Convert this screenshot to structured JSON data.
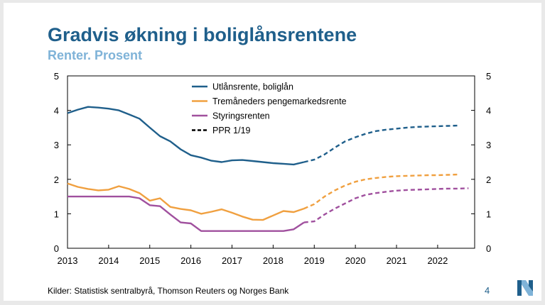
{
  "header": {
    "title": "Gradvis økning i boliglånsrentene",
    "subtitle": "Renter. Prosent"
  },
  "footer": {
    "source": "Kilder: Statistisk sentralbyrå, Thomson Reuters og Norges Bank",
    "page_number": "4"
  },
  "chart_data": {
    "type": "line",
    "title": "Gradvis økning i boliglånsrentene",
    "subtitle": "Renter. Prosent",
    "xlabel": "",
    "ylabel": "",
    "xlim": [
      2013.0,
      2022.9
    ],
    "ylim": [
      0,
      5
    ],
    "x_ticks": [
      2013,
      2014,
      2015,
      2016,
      2017,
      2018,
      2019,
      2020,
      2021,
      2022
    ],
    "y_ticks": [
      0,
      1,
      2,
      3,
      4,
      5
    ],
    "y_axis_right": true,
    "grid": false,
    "legend_position": "top-center",
    "legend_entries": [
      "Utlånsrente, boliglån",
      "Tremåneders pengemarkedsrente",
      "Styringsrenten",
      "PPR 1/19"
    ],
    "series": [
      {
        "name": "Utlånsrente, boliglån",
        "color": "#1f5f8b",
        "style": "solid",
        "x": [
          2013.0,
          2013.25,
          2013.5,
          2013.75,
          2014.0,
          2014.25,
          2014.5,
          2014.75,
          2015.0,
          2015.25,
          2015.5,
          2015.75,
          2016.0,
          2016.25,
          2016.5,
          2016.75,
          2017.0,
          2017.25,
          2017.5,
          2017.75,
          2018.0,
          2018.25,
          2018.5,
          2018.75
        ],
        "y": [
          3.92,
          4.02,
          4.1,
          4.08,
          4.05,
          4.0,
          3.88,
          3.76,
          3.5,
          3.25,
          3.1,
          2.87,
          2.7,
          2.63,
          2.54,
          2.5,
          2.55,
          2.56,
          2.53,
          2.5,
          2.47,
          2.45,
          2.43,
          2.5
        ]
      },
      {
        "name": "",
        "color": "#1f5f8b",
        "style": "dashed",
        "x": [
          2018.75,
          2019.0,
          2019.25,
          2019.5,
          2019.75,
          2020.0,
          2020.25,
          2020.5,
          2020.75,
          2021.0,
          2021.25,
          2021.5,
          2021.75,
          2022.0,
          2022.25,
          2022.5
        ],
        "y": [
          2.5,
          2.57,
          2.72,
          2.92,
          3.1,
          3.22,
          3.32,
          3.4,
          3.44,
          3.47,
          3.5,
          3.52,
          3.53,
          3.54,
          3.55,
          3.56
        ]
      },
      {
        "name": "Tremåneders pengemarkedsrente",
        "color": "#f0a040",
        "style": "solid",
        "x": [
          2013.0,
          2013.25,
          2013.5,
          2013.75,
          2014.0,
          2014.25,
          2014.5,
          2014.75,
          2015.0,
          2015.25,
          2015.5,
          2015.75,
          2016.0,
          2016.25,
          2016.5,
          2016.75,
          2017.0,
          2017.25,
          2017.5,
          2017.75,
          2018.0,
          2018.25,
          2018.5,
          2018.75
        ],
        "y": [
          1.88,
          1.78,
          1.72,
          1.68,
          1.7,
          1.8,
          1.72,
          1.6,
          1.38,
          1.45,
          1.2,
          1.14,
          1.1,
          1.0,
          1.06,
          1.13,
          1.03,
          0.92,
          0.83,
          0.82,
          0.95,
          1.08,
          1.05,
          1.15
        ]
      },
      {
        "name": "",
        "color": "#f0a040",
        "style": "dashed",
        "x": [
          2018.75,
          2019.0,
          2019.25,
          2019.5,
          2019.75,
          2020.0,
          2020.25,
          2020.5,
          2020.75,
          2021.0,
          2021.25,
          2021.5,
          2021.75,
          2022.0,
          2022.25,
          2022.5
        ],
        "y": [
          1.15,
          1.28,
          1.5,
          1.68,
          1.82,
          1.93,
          2.0,
          2.04,
          2.07,
          2.09,
          2.1,
          2.11,
          2.12,
          2.12,
          2.13,
          2.14
        ]
      },
      {
        "name": "Styringsrenten",
        "color": "#a0509e",
        "style": "solid",
        "x": [
          2013.0,
          2014.0,
          2014.5,
          2014.75,
          2015.0,
          2015.25,
          2015.5,
          2015.75,
          2016.0,
          2016.25,
          2016.5,
          2017.0,
          2017.5,
          2018.0,
          2018.25,
          2018.5,
          2018.75
        ],
        "y": [
          1.5,
          1.5,
          1.5,
          1.45,
          1.25,
          1.22,
          0.98,
          0.75,
          0.72,
          0.5,
          0.5,
          0.5,
          0.5,
          0.5,
          0.5,
          0.55,
          0.75
        ]
      },
      {
        "name": "",
        "color": "#a0509e",
        "style": "dashed",
        "x": [
          2018.75,
          2019.0,
          2019.25,
          2019.5,
          2019.75,
          2020.0,
          2020.25,
          2020.5,
          2020.75,
          2021.0,
          2021.25,
          2021.5,
          2021.75,
          2022.0,
          2022.25,
          2022.5,
          2022.75
        ],
        "y": [
          0.75,
          0.78,
          0.98,
          1.15,
          1.3,
          1.45,
          1.55,
          1.6,
          1.64,
          1.67,
          1.69,
          1.7,
          1.71,
          1.72,
          1.73,
          1.73,
          1.74
        ]
      }
    ],
    "legend": [
      {
        "label": "Utlånsrente, boliglån",
        "color": "#1f5f8b",
        "style": "solid"
      },
      {
        "label": "Tremåneders pengemarkedsrente",
        "color": "#f0a040",
        "style": "solid"
      },
      {
        "label": "Styringsrenten",
        "color": "#a0509e",
        "style": "solid"
      },
      {
        "label": "PPR 1/19",
        "color": "#000000",
        "style": "dashed"
      }
    ]
  },
  "branding": {
    "logo_icon": "norges-bank-logo",
    "logo_color": "#1f5f8b",
    "logo_accent": "#7fb3d8"
  }
}
